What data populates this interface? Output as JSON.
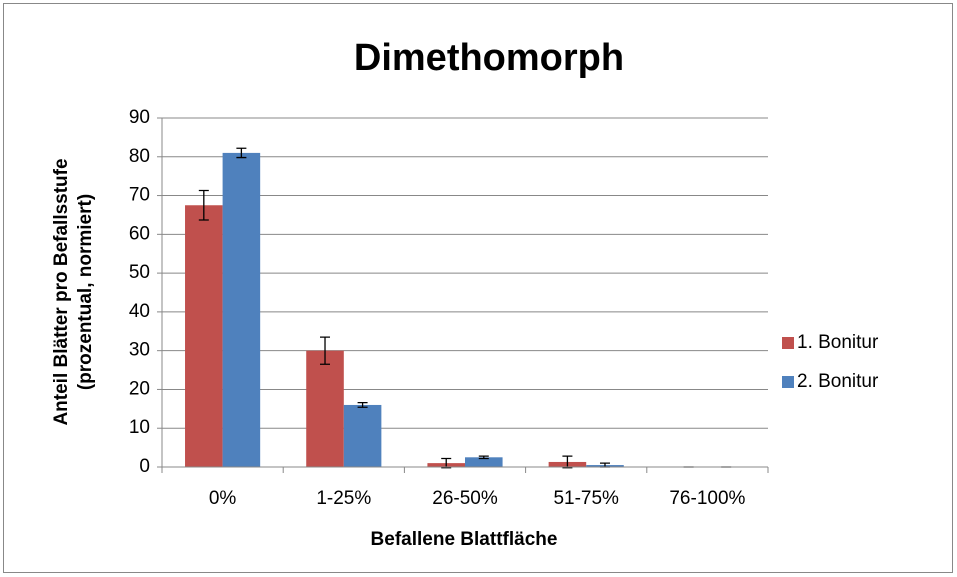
{
  "chart_data": {
    "type": "bar",
    "title": "Dimethomorph",
    "xlabel": "Befallene Blattfläche",
    "ylabel": [
      "Anteil Blätter pro Befallsstufe",
      "(prozentual, normiert)"
    ],
    "categories": [
      "0%",
      "1-25%",
      "26-50%",
      "51-75%",
      "76-100%"
    ],
    "series": [
      {
        "name": "1. Bonitur",
        "color": "#c0504d",
        "values": [
          67.5,
          30,
          1,
          1.3,
          0
        ],
        "errors": [
          3.8,
          3.5,
          1.2,
          1.5,
          0
        ]
      },
      {
        "name": "2. Bonitur",
        "color": "#4f81bd",
        "values": [
          81,
          16,
          2.5,
          0.5,
          0
        ],
        "errors": [
          1.2,
          0.6,
          0.3,
          0.5,
          0
        ]
      }
    ],
    "ylim": [
      0,
      90
    ],
    "yticks": [
      0,
      10,
      20,
      30,
      40,
      50,
      60,
      70,
      80,
      90
    ],
    "grid": true,
    "legend": "right"
  }
}
